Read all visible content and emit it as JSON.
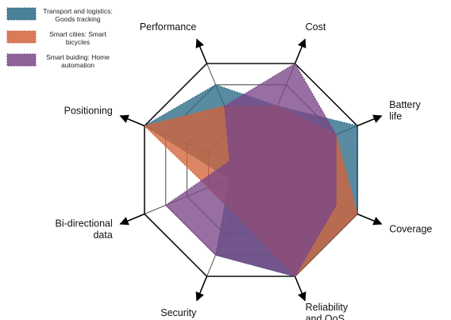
{
  "chart_data": {
    "type": "radar",
    "axes": [
      {
        "id": "performance",
        "lines": [
          "Performance"
        ]
      },
      {
        "id": "cost",
        "lines": [
          "Cost"
        ]
      },
      {
        "id": "battery-life",
        "lines": [
          "Battery",
          "life"
        ]
      },
      {
        "id": "coverage",
        "lines": [
          "Coverage"
        ]
      },
      {
        "id": "reliability",
        "lines": [
          "Reliability",
          "and QoS"
        ]
      },
      {
        "id": "security",
        "lines": [
          "Security"
        ]
      },
      {
        "id": "bidirectional",
        "lines": [
          "Bi-directional",
          "data"
        ]
      },
      {
        "id": "positioning",
        "lines": [
          "Positioning"
        ]
      }
    ],
    "rmax": 5,
    "rings": 5,
    "series": [
      {
        "name": "Transport and logistics: Goods tracking",
        "legend_lines": [
          "Transport and logistics:",
          "Goods tracking"
        ],
        "color": "#2a6a86",
        "values": [
          4,
          3,
          5,
          5,
          5,
          4,
          1,
          5
        ]
      },
      {
        "name": "Smart cities: Smart bicycles",
        "legend_lines": [
          "Smart cities: Smart",
          "bicycles"
        ],
        "color": "#d2643b",
        "values": [
          3,
          3,
          4,
          5,
          5,
          2,
          2,
          5
        ]
      },
      {
        "name": "Smart buiding: Home automation",
        "legend_lines": [
          "Smart buiding: Home",
          "automation"
        ],
        "color": "#7b4788",
        "values": [
          3,
          5,
          4,
          4,
          5,
          4,
          4,
          1
        ]
      }
    ]
  }
}
